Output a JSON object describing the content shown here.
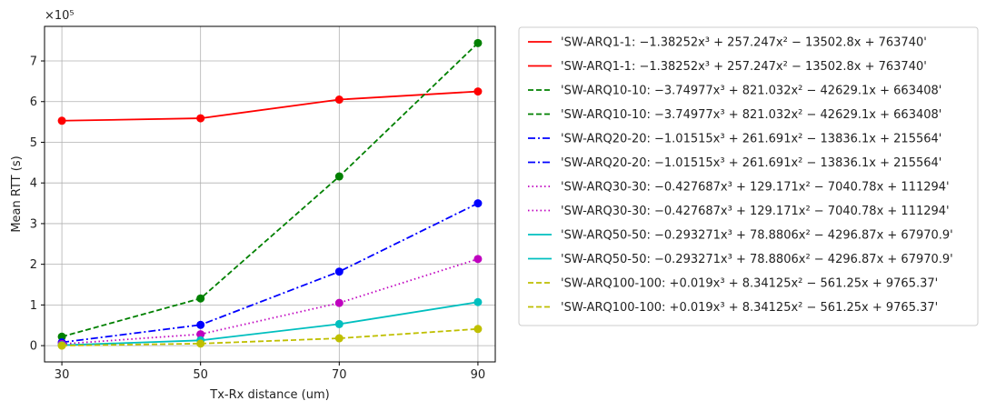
{
  "chart_data": {
    "type": "line",
    "xlabel": "Tx-Rx distance (um)",
    "ylabel": "Mean RTT (s)",
    "y_multiplier": "×10⁵",
    "x": [
      30,
      50,
      70,
      90
    ],
    "xlim": [
      27.5,
      92.5
    ],
    "ylim": [
      -0.4,
      7.85
    ],
    "xticks": [
      "30",
      "50",
      "70",
      "90"
    ],
    "yticks": [
      "0",
      "1",
      "2",
      "3",
      "4",
      "5",
      "6",
      "7"
    ],
    "grid": true,
    "legend_position": "outside-right",
    "series": [
      {
        "name": "'SW-ARQ1-1: −1.38252x³ + 257.247x² − 13502.8x + 763740'",
        "color": "#ff0000",
        "dash": "solid",
        "values": [
          5.53,
          5.59,
          6.05,
          6.25
        ]
      },
      {
        "name": "'SW-ARQ10-10: −3.74977x³ + 821.032x² − 42629.1x + 663408'",
        "color": "#008000",
        "dash": "dashed",
        "values": [
          0.22,
          1.16,
          4.16,
          7.44
        ]
      },
      {
        "name": "'SW-ARQ20-20: −1.01515x³ + 261.691x² − 13836.1x + 215564'",
        "color": "#0000ff",
        "dash": "dashdot",
        "values": [
          0.08,
          0.51,
          1.82,
          3.5
        ]
      },
      {
        "name": "'SW-ARQ30-30: −0.427687x³ + 129.171x² − 7040.78x + 111294'",
        "color": "#bf00bf",
        "dash": "dotted",
        "values": [
          0.04,
          0.28,
          1.05,
          2.13
        ]
      },
      {
        "name": "'SW-ARQ50-50: −0.293271x³ + 78.8806x² − 4296.87x + 67970.9'",
        "color": "#00bfbf",
        "dash": "solid",
        "values": [
          0.01,
          0.13,
          0.53,
          1.07
        ]
      },
      {
        "name": "'SW-ARQ100-100: +0.019x³ + 8.34125x² − 561.25x + 9765.37'",
        "color": "#bfbf00",
        "dash": "dashed",
        "values": [
          0.0,
          0.05,
          0.18,
          0.41
        ]
      }
    ]
  }
}
